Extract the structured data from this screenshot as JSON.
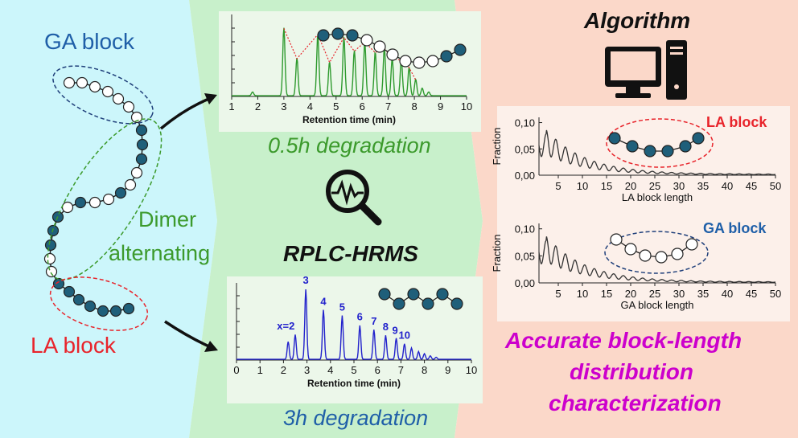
{
  "colors": {
    "left_bg": "#ccf6fb",
    "middle_bg": "#c8f0cb",
    "right_bg": "#fbd8c9",
    "ga_blue": "#1f5fa8",
    "la_red": "#e8242b",
    "green_text": "#3c9a2c",
    "magenta": "#cc00cc",
    "bead_dark": "#1f5f7a",
    "chrom_green": "#2e9a2e",
    "chrom_blue": "#2222cc"
  },
  "left": {
    "ga_block_label": "GA block",
    "dimer_label_line1": "Dimer",
    "dimer_label_line2": "alternating",
    "la_block_label": "LA block"
  },
  "middle": {
    "top_caption": "0.5h degradation",
    "method_label": "RPLC-HRMS",
    "bottom_caption": "3h degradation",
    "magnifier_icon": "magnifier-signal-icon"
  },
  "right": {
    "algorithm_label": "Algorithm",
    "computer_icon": "computer-icon",
    "result_line1": "Accurate block-length",
    "result_line2": "distribution",
    "result_line3": "characterization"
  },
  "chart_data": [
    {
      "type": "line",
      "title": "0.5h degradation chromatogram",
      "xlabel": "Retention time (min)",
      "ylabel": "",
      "xlim": [
        1,
        10
      ],
      "x_ticks": [
        "1",
        "2",
        "3",
        "4",
        "5",
        "6",
        "7",
        "8",
        "9",
        "10"
      ],
      "peaks_x": [
        1.8,
        3.0,
        3.5,
        4.3,
        4.75,
        5.3,
        5.7,
        6.1,
        6.5,
        6.85,
        7.15,
        7.5,
        7.8,
        8.05,
        8.3,
        8.55
      ],
      "peaks_height": [
        0.05,
        0.9,
        0.5,
        0.82,
        0.45,
        0.78,
        0.6,
        0.72,
        0.58,
        0.64,
        0.5,
        0.48,
        0.38,
        0.22,
        0.1,
        0.05
      ]
    },
    {
      "type": "line",
      "title": "3h degradation chromatogram",
      "xlabel": "Retention time (min)",
      "ylabel": "",
      "xlim": [
        0,
        10
      ],
      "x_ticks": [
        "0",
        "1",
        "2",
        "3",
        "4",
        "5",
        "6",
        "7",
        "8",
        "9",
        "10"
      ],
      "peak_labels": [
        "x=2",
        "3",
        "4",
        "5",
        "6",
        "7",
        "8",
        "9",
        "10"
      ],
      "peaks_x": [
        2.2,
        2.5,
        2.95,
        3.7,
        4.5,
        5.25,
        5.85,
        6.35,
        6.8,
        7.15,
        7.45,
        7.75,
        8.0,
        8.25,
        8.5
      ],
      "peaks_height": [
        0.25,
        0.35,
        1.0,
        0.7,
        0.62,
        0.48,
        0.42,
        0.34,
        0.3,
        0.22,
        0.16,
        0.11,
        0.08,
        0.05,
        0.03
      ]
    },
    {
      "type": "line",
      "title": "LA block",
      "xlabel": "LA block length",
      "ylabel": "Fraction",
      "xlim": [
        1,
        50
      ],
      "ylim": [
        0,
        0.11
      ],
      "x_ticks": [
        "5",
        "10",
        "15",
        "20",
        "25",
        "30",
        "35",
        "40",
        "45",
        "50"
      ],
      "y_ticks": [
        "0,00",
        "0,05",
        "0,10"
      ],
      "annotation": "LA block"
    },
    {
      "type": "line",
      "title": "GA block",
      "xlabel": "GA block length",
      "ylabel": "Fraction",
      "xlim": [
        1,
        50
      ],
      "ylim": [
        0,
        0.11
      ],
      "x_ticks": [
        "5",
        "10",
        "15",
        "20",
        "25",
        "30",
        "35",
        "40",
        "45",
        "50"
      ],
      "y_ticks": [
        "0,00",
        "0,05",
        "0,10"
      ],
      "annotation": "GA block"
    }
  ]
}
